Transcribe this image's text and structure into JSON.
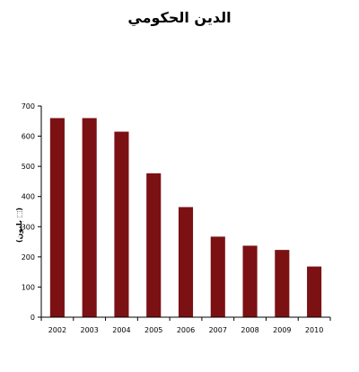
{
  "chart_data": {
    "type": "bar",
    "title": "الدين الحكومي",
    "xlabel": "",
    "ylabel": "(بليون  ⬚)",
    "categories": [
      "2002",
      "2003",
      "2004",
      "2005",
      "2006",
      "2007",
      "2008",
      "2009",
      "2010"
    ],
    "values": [
      660,
      660,
      615,
      477,
      365,
      267,
      237,
      223,
      168
    ],
    "ylim": [
      0,
      700
    ],
    "yticks": [
      "0",
      "100",
      "200",
      "300",
      "400",
      "500",
      "600",
      "700"
    ],
    "grid": false,
    "legend": "none",
    "bar_color": "#7b1113",
    "axis_color": "#000000"
  }
}
